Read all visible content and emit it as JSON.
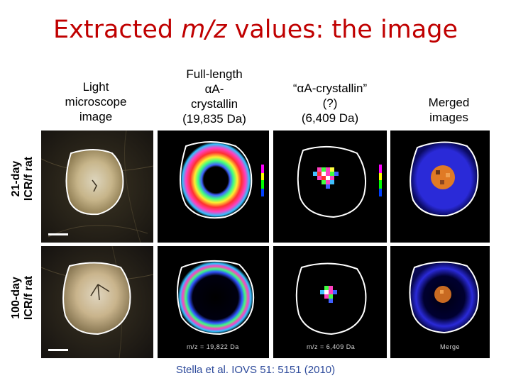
{
  "title": {
    "prefix": "Extracted ",
    "italic": "m/z",
    "suffix": " values: the image"
  },
  "columns": [
    {
      "lines": [
        "Light",
        "microscope",
        "image"
      ]
    },
    {
      "lines": [
        "Full-length",
        "αA-",
        "crystallin"
      ],
      "sub": "(19,835 Da)"
    },
    {
      "lines": [
        "“αA-crystallin”",
        "(?)"
      ],
      "sub": "(6,409 Da)"
    },
    {
      "lines": [
        "Merged",
        "images"
      ]
    }
  ],
  "rows": [
    {
      "lines": [
        "21-day",
        "ICR/f rat"
      ]
    },
    {
      "lines": [
        "100-day",
        "ICR/f rat"
      ]
    }
  ],
  "captions": {
    "full_length": "m/z = 19,822 Da",
    "alpha_a": "m/z = 6,409 Da",
    "merge": "Merge"
  },
  "citation": "Stella et al. IOVS 51: 5151 (2010)",
  "colors": {
    "title": "#c00000",
    "citation": "#2d4a9b"
  }
}
